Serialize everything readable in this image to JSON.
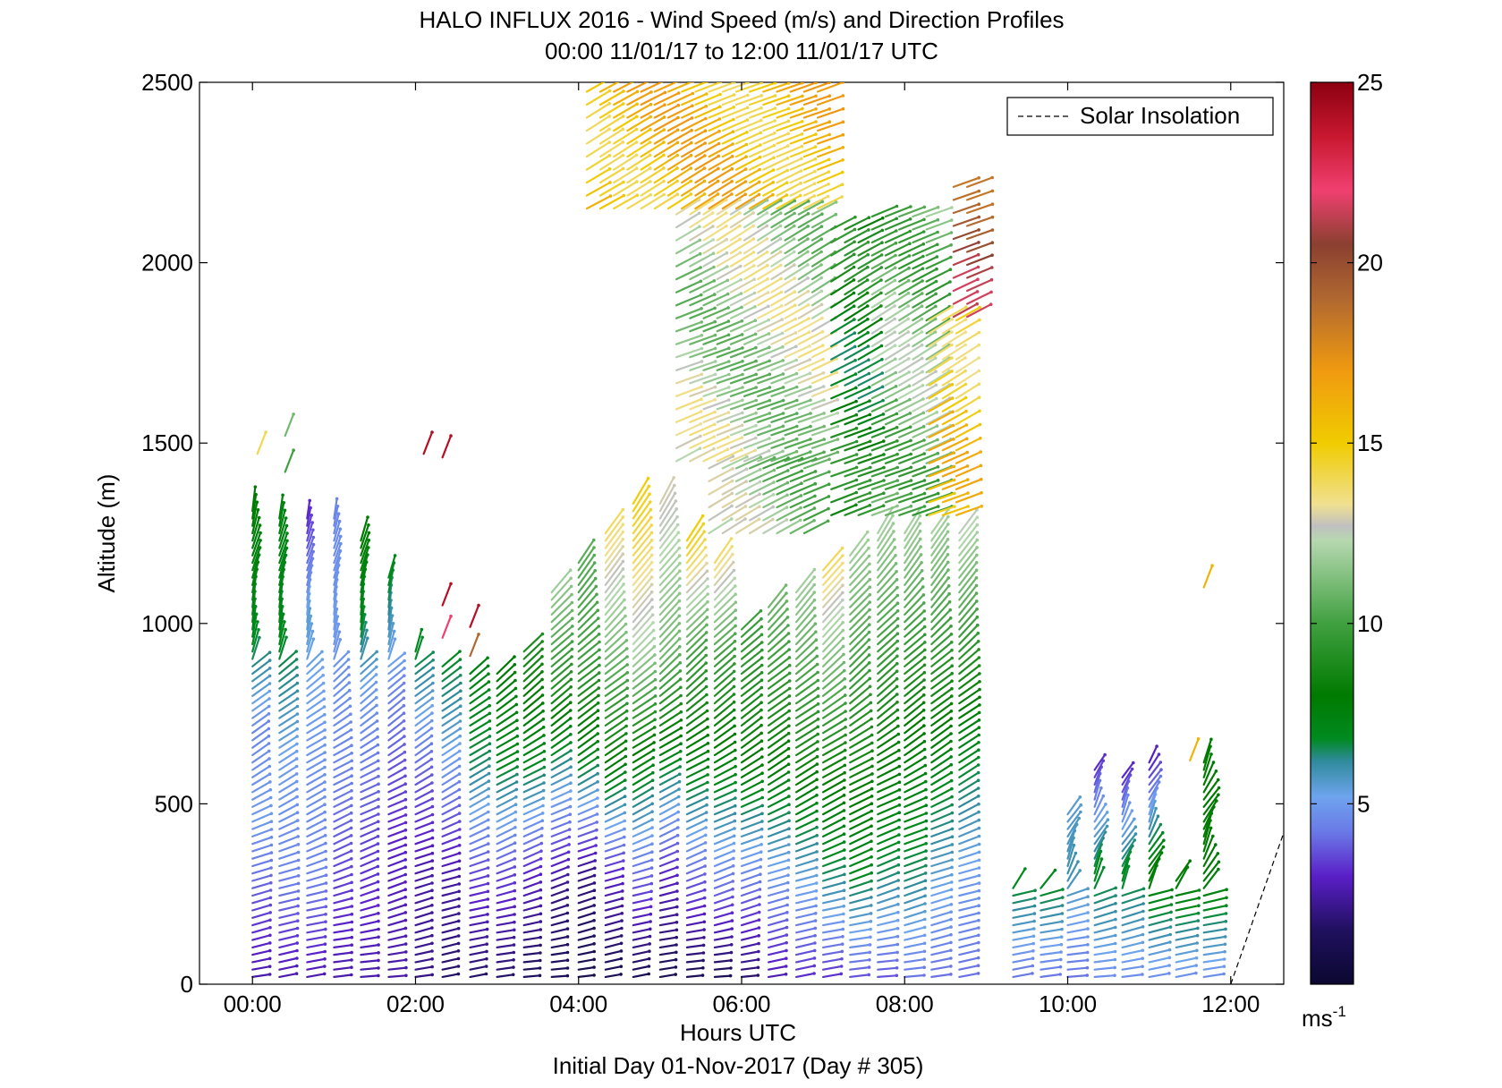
{
  "chart_data": {
    "type": "scatter",
    "title": "HALO INFLUX 2016 - Wind Speed (m/s) and Direction Profiles",
    "subtitle": "00:00 11/01/17 to 12:00 11/01/17  UTC",
    "xlabel": "Hours UTC",
    "xlabel2": "Initial Day 01-Nov-2017 (Day # 305)",
    "ylabel": "Altitude (m)",
    "xlim": [
      -0.65,
      12.65
    ],
    "ylim": [
      0,
      2500
    ],
    "x_ticks": [
      0,
      2,
      4,
      6,
      8,
      10,
      12
    ],
    "x_tick_labels": [
      "00:00",
      "02:00",
      "04:00",
      "06:00",
      "08:00",
      "10:00",
      "12:00"
    ],
    "y_ticks": [
      0,
      500,
      1000,
      1500,
      2000,
      2500
    ],
    "y_tick_labels": [
      "0",
      "500",
      "1000",
      "1500",
      "2000",
      "2500"
    ],
    "colorbar": {
      "range": [
        0,
        25
      ],
      "ticks": [
        5,
        10,
        15,
        20,
        25
      ],
      "tick_labels": [
        "5",
        "10",
        "15",
        "20",
        "25"
      ],
      "unit": "ms",
      "unit_exp": "-1",
      "stops": [
        {
          "v": 0,
          "c": "#0b0830"
        },
        {
          "v": 1.5,
          "c": "#20105e"
        },
        {
          "v": 3,
          "c": "#5a1fc8"
        },
        {
          "v": 4.2,
          "c": "#6a78e6"
        },
        {
          "v": 5.2,
          "c": "#6ea4ee"
        },
        {
          "v": 6.2,
          "c": "#2e8a9a"
        },
        {
          "v": 6.8,
          "c": "#008a20"
        },
        {
          "v": 8,
          "c": "#007a00"
        },
        {
          "v": 10,
          "c": "#40a040"
        },
        {
          "v": 12.3,
          "c": "#b6d8b0"
        },
        {
          "v": 12.7,
          "c": "#c0c0c0"
        },
        {
          "v": 13.3,
          "c": "#f0e090"
        },
        {
          "v": 15,
          "c": "#f0cc00"
        },
        {
          "v": 17,
          "c": "#f09a10"
        },
        {
          "v": 19,
          "c": "#b06830"
        },
        {
          "v": 20.5,
          "c": "#8a4030"
        },
        {
          "v": 22,
          "c": "#f04070"
        },
        {
          "v": 23.5,
          "c": "#c81830"
        },
        {
          "v": 25,
          "c": "#8c0010"
        }
      ]
    },
    "legend": {
      "position": "top-right",
      "entries": [
        {
          "label": "Solar Insolation",
          "style": "dashed",
          "color": "#000000"
        }
      ]
    },
    "series": [
      {
        "name": "Solar Insolation",
        "type": "line",
        "style": "dashed",
        "x": [
          12.0,
          12.65
        ],
        "y": [
          0,
          420
        ]
      }
    ],
    "profiles": [
      {
        "t": 0.0,
        "top": 1320,
        "spd": [
          [
            0,
            2.5
          ],
          [
            200,
            3.5
          ],
          [
            450,
            5
          ],
          [
            700,
            4.5
          ],
          [
            950,
            7
          ],
          [
            1320,
            8
          ]
        ]
      },
      {
        "t": 0.33,
        "top": 1300,
        "spd": [
          [
            0,
            2.5
          ],
          [
            300,
            4.5
          ],
          [
            600,
            5
          ],
          [
            950,
            7
          ],
          [
            1300,
            7.5
          ]
        ]
      },
      {
        "t": 0.67,
        "top": 1300,
        "spd": [
          [
            0,
            2.5
          ],
          [
            300,
            4.5
          ],
          [
            600,
            4.8
          ],
          [
            1000,
            5.5
          ],
          [
            1300,
            3
          ]
        ]
      },
      {
        "t": 1.0,
        "top": 1300,
        "spd": [
          [
            0,
            2.5
          ],
          [
            300,
            3.5
          ],
          [
            600,
            4.5
          ],
          [
            1000,
            5
          ],
          [
            1300,
            4.5
          ]
        ]
      },
      {
        "t": 1.33,
        "top": 1230,
        "spd": [
          [
            0,
            2.5
          ],
          [
            400,
            3.5
          ],
          [
            800,
            5
          ],
          [
            1000,
            7
          ],
          [
            1230,
            8
          ]
        ]
      },
      {
        "t": 1.67,
        "top": 1130,
        "spd": [
          [
            0,
            2.5
          ],
          [
            400,
            3
          ],
          [
            800,
            4.5
          ],
          [
            1130,
            7
          ]
        ]
      },
      {
        "t": 2.0,
        "top": 930,
        "spd": [
          [
            0,
            2
          ],
          [
            300,
            2.5
          ],
          [
            600,
            4
          ],
          [
            930,
            7
          ]
        ]
      },
      {
        "t": 2.33,
        "top": 900,
        "spd": [
          [
            0,
            1.5
          ],
          [
            300,
            2.5
          ],
          [
            600,
            5
          ],
          [
            900,
            7
          ]
        ]
      },
      {
        "t": 2.67,
        "top": 880,
        "spd": [
          [
            0,
            1.5
          ],
          [
            300,
            3.5
          ],
          [
            600,
            6.5
          ],
          [
            880,
            7.5
          ]
        ]
      },
      {
        "t": 3.0,
        "top": 880,
        "spd": [
          [
            0,
            1.5
          ],
          [
            300,
            3.5
          ],
          [
            600,
            7
          ],
          [
            880,
            8
          ]
        ]
      },
      {
        "t": 3.33,
        "top": 930,
        "spd": [
          [
            0,
            1.2
          ],
          [
            300,
            3
          ],
          [
            600,
            7
          ],
          [
            930,
            9
          ]
        ]
      },
      {
        "t": 3.67,
        "top": 1100,
        "spd": [
          [
            0,
            1.2
          ],
          [
            250,
            2
          ],
          [
            500,
            5
          ],
          [
            800,
            9
          ],
          [
            1100,
            12
          ]
        ]
      },
      {
        "t": 4.0,
        "top": 1170,
        "spd": [
          [
            0,
            1
          ],
          [
            300,
            2
          ],
          [
            600,
            7
          ],
          [
            900,
            10
          ],
          [
            1170,
            10.5
          ]
        ]
      },
      {
        "t": 4.33,
        "top": 1260,
        "spd": [
          [
            0,
            1
          ],
          [
            300,
            3
          ],
          [
            600,
            8
          ],
          [
            900,
            11
          ],
          [
            1260,
            14
          ]
        ]
      },
      {
        "t": 4.67,
        "top": 1340,
        "spd": [
          [
            0,
            1
          ],
          [
            300,
            4
          ],
          [
            600,
            7.5
          ],
          [
            900,
            12
          ],
          [
            1340,
            15
          ]
        ]
      },
      {
        "t": 5.0,
        "top": 1350,
        "spd": [
          [
            0,
            1
          ],
          [
            300,
            3
          ],
          [
            600,
            7
          ],
          [
            900,
            11
          ],
          [
            1350,
            13
          ]
        ]
      },
      {
        "t": 5.33,
        "top": 1230,
        "spd": [
          [
            0,
            1
          ],
          [
            300,
            4
          ],
          [
            600,
            7.5
          ],
          [
            900,
            10
          ],
          [
            1230,
            15
          ]
        ]
      },
      {
        "t": 5.67,
        "top": 1180,
        "spd": [
          [
            0,
            1
          ],
          [
            300,
            4.5
          ],
          [
            600,
            7.5
          ],
          [
            900,
            10
          ],
          [
            1180,
            14
          ]
        ]
      },
      {
        "t": 6.0,
        "top": 1000,
        "spd": [
          [
            0,
            1.5
          ],
          [
            300,
            4.5
          ],
          [
            600,
            8
          ],
          [
            1000,
            10
          ]
        ]
      },
      {
        "t": 6.33,
        "top": 1050,
        "spd": [
          [
            0,
            2.5
          ],
          [
            300,
            5
          ],
          [
            600,
            8
          ],
          [
            1050,
            11
          ]
        ]
      },
      {
        "t": 6.67,
        "top": 1100,
        "spd": [
          [
            0,
            3
          ],
          [
            300,
            5.5
          ],
          [
            600,
            8.5
          ],
          [
            1100,
            12
          ]
        ]
      },
      {
        "t": 7.0,
        "top": 1150,
        "spd": [
          [
            0,
            3
          ],
          [
            300,
            6.5
          ],
          [
            600,
            8.5
          ],
          [
            1150,
            14
          ]
        ]
      },
      {
        "t": 7.33,
        "top": 1200,
        "spd": [
          [
            0,
            3.5
          ],
          [
            300,
            7
          ],
          [
            700,
            9
          ],
          [
            1200,
            12
          ]
        ]
      },
      {
        "t": 7.67,
        "top": 1250,
        "spd": [
          [
            0,
            3.5
          ],
          [
            300,
            6.5
          ],
          [
            700,
            8.5
          ],
          [
            1250,
            12
          ]
        ]
      },
      {
        "t": 8.0,
        "top": 1250,
        "spd": [
          [
            0,
            4
          ],
          [
            300,
            6.5
          ],
          [
            700,
            8
          ],
          [
            1250,
            12
          ]
        ]
      },
      {
        "t": 8.33,
        "top": 1250,
        "spd": [
          [
            0,
            4
          ],
          [
            300,
            5.5
          ],
          [
            700,
            8
          ],
          [
            1250,
            12
          ]
        ]
      },
      {
        "t": 8.67,
        "top": 1250,
        "spd": [
          [
            0,
            4
          ],
          [
            300,
            5
          ],
          [
            700,
            7.5
          ],
          [
            1250,
            12.5
          ]
        ]
      },
      {
        "t": 9.33,
        "top": 280,
        "spd": [
          [
            0,
            4
          ],
          [
            280,
            7
          ]
        ]
      },
      {
        "t": 9.67,
        "top": 270,
        "spd": [
          [
            0,
            4
          ],
          [
            270,
            7
          ]
        ]
      },
      {
        "t": 10.0,
        "top": 480,
        "spd": [
          [
            0,
            4
          ],
          [
            300,
            6
          ],
          [
            480,
            5.5
          ]
        ]
      },
      {
        "t": 10.33,
        "top": 610,
        "spd": [
          [
            0,
            4.5
          ],
          [
            300,
            7
          ],
          [
            610,
            3
          ]
        ]
      },
      {
        "t": 10.67,
        "top": 580,
        "spd": [
          [
            0,
            4.5
          ],
          [
            300,
            7
          ],
          [
            580,
            3
          ]
        ]
      },
      {
        "t": 11.0,
        "top": 620,
        "spd": [
          [
            0,
            4.5
          ],
          [
            300,
            8
          ],
          [
            620,
            2.8
          ]
        ]
      },
      {
        "t": 11.33,
        "top": 290,
        "spd": [
          [
            0,
            4.5
          ],
          [
            290,
            8
          ]
        ]
      },
      {
        "t": 11.67,
        "top": 620,
        "spd": [
          [
            0,
            4.5
          ],
          [
            300,
            8
          ],
          [
            620,
            8
          ]
        ]
      }
    ],
    "upper_blocks": [
      {
        "t0": 4.1,
        "t1": 7.1,
        "y0": 2150,
        "y1": 2500,
        "spd": 15.5
      },
      {
        "t0": 5.2,
        "t1": 7.0,
        "y0": 1450,
        "y1": 2150,
        "spd": 12
      },
      {
        "t0": 5.6,
        "t1": 6.8,
        "y0": 1250,
        "y1": 1450,
        "spd": 11.5
      },
      {
        "t0": 7.1,
        "t1": 7.6,
        "y0": 1300,
        "y1": 2100,
        "spd": 8
      },
      {
        "t0": 7.6,
        "t1": 8.3,
        "y0": 1300,
        "y1": 2150,
        "spd": 11
      },
      {
        "t0": 8.3,
        "t1": 8.8,
        "y0": 1300,
        "y1": 1850,
        "spd": 15
      },
      {
        "t0": 8.6,
        "t1": 8.8,
        "y0": 1850,
        "y1": 2230,
        "spd": 20
      }
    ],
    "scattered_arrows": [
      {
        "t": 0.06,
        "y": 1470,
        "spd": 14
      },
      {
        "t": 0.4,
        "y": 1420,
        "spd": 10
      },
      {
        "t": 0.4,
        "y": 1520,
        "spd": 11
      },
      {
        "t": 2.1,
        "y": 1470,
        "spd": 24
      },
      {
        "t": 2.33,
        "y": 1460,
        "spd": 24
      },
      {
        "t": 2.33,
        "y": 1050,
        "spd": 24
      },
      {
        "t": 2.67,
        "y": 990,
        "spd": 24
      },
      {
        "t": 2.33,
        "y": 960,
        "spd": 22
      },
      {
        "t": 2.67,
        "y": 910,
        "spd": 19
      },
      {
        "t": 11.67,
        "y": 1100,
        "spd": 16
      },
      {
        "t": 11.5,
        "y": 620,
        "spd": 16
      }
    ]
  }
}
